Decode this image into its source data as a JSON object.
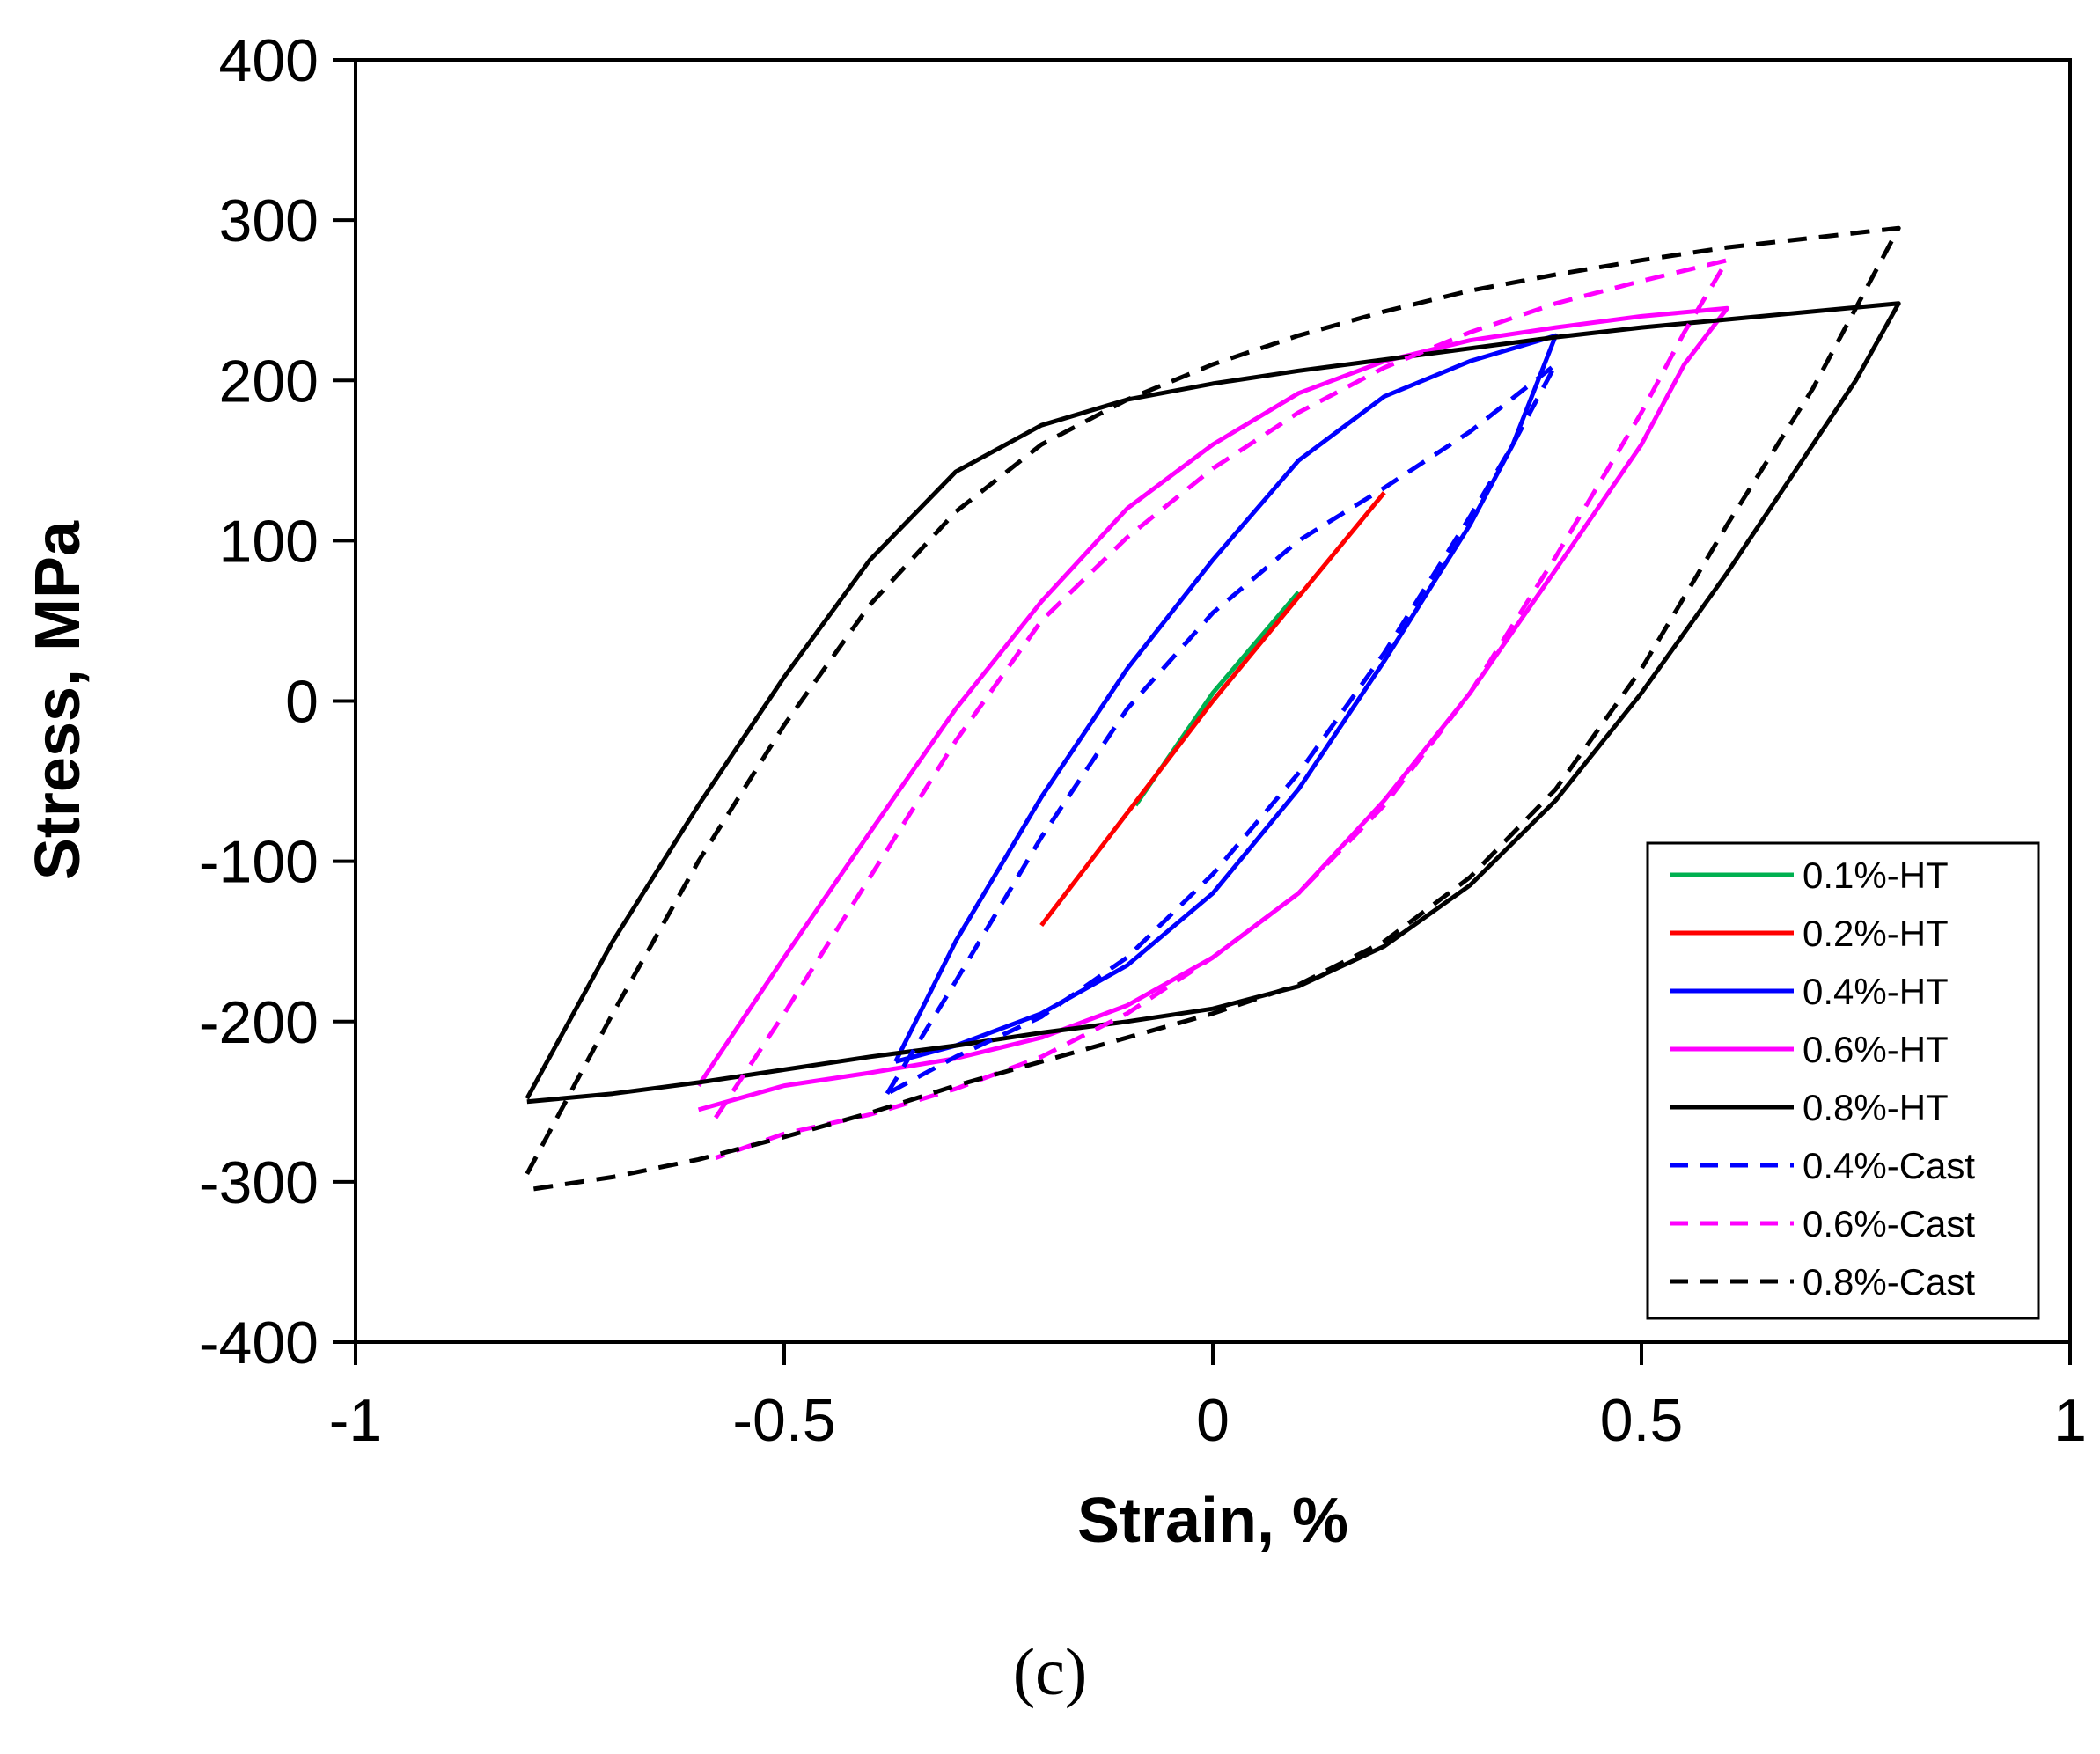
{
  "chart_data": {
    "type": "line",
    "title": "",
    "caption": "(c)",
    "xlabel": "Strain, %",
    "ylabel": "Stress, MPa",
    "xlim": [
      -1,
      1
    ],
    "ylim": [
      -400,
      400
    ],
    "xticks": [
      -1,
      -0.5,
      0,
      0.5,
      1
    ],
    "xtick_labels": [
      "-1",
      "-0.5",
      "0",
      "0.5",
      "1"
    ],
    "yticks": [
      -400,
      -300,
      -200,
      -100,
      0,
      100,
      200,
      300,
      400
    ],
    "ytick_labels": [
      "-400",
      "-300",
      "-200",
      "-100",
      "0",
      "100",
      "200",
      "300",
      "400"
    ],
    "grid": false,
    "legend_position": "bottom-right",
    "series": [
      {
        "name": "0.1%-HT",
        "color": "#00b050",
        "dash": "solid",
        "x": [
          -0.09,
          0.0,
          0.1
        ],
        "y": [
          -65,
          5,
          68
        ]
      },
      {
        "name": "0.2%-HT",
        "color": "#ff0000",
        "dash": "solid",
        "x": [
          -0.2,
          -0.1,
          0.0,
          0.1,
          0.2
        ],
        "y": [
          -140,
          -70,
          0,
          65,
          130
        ]
      },
      {
        "name": "0.4%-HT",
        "color": "#0000ff",
        "dash": "solid",
        "x": [
          -0.37,
          -0.3,
          -0.2,
          -0.1,
          0.0,
          0.1,
          0.2,
          0.3,
          0.4,
          0.35,
          0.3,
          0.2,
          0.1,
          0.0,
          -0.1,
          -0.2,
          -0.3,
          -0.37
        ],
        "y": [
          -225,
          -150,
          -60,
          20,
          88,
          150,
          190,
          212,
          228,
          160,
          110,
          25,
          -55,
          -120,
          -165,
          -195,
          -215,
          -225
        ]
      },
      {
        "name": "0.6%-HT",
        "color": "#ff00ff",
        "dash": "solid",
        "x": [
          -0.6,
          -0.5,
          -0.4,
          -0.3,
          -0.2,
          -0.1,
          0.0,
          0.1,
          0.2,
          0.3,
          0.4,
          0.5,
          0.6,
          0.55,
          0.5,
          0.4,
          0.3,
          0.2,
          0.1,
          0.0,
          -0.1,
          -0.2,
          -0.3,
          -0.4,
          -0.5,
          -0.6
        ],
        "y": [
          -240,
          -160,
          -82,
          -5,
          62,
          120,
          160,
          192,
          212,
          225,
          233,
          240,
          245,
          210,
          160,
          82,
          5,
          -62,
          -120,
          -160,
          -190,
          -210,
          -223,
          -232,
          -240,
          -255
        ]
      },
      {
        "name": "0.8%-HT",
        "color": "#000000",
        "dash": "solid",
        "x": [
          -0.8,
          -0.7,
          -0.6,
          -0.5,
          -0.4,
          -0.3,
          -0.2,
          -0.1,
          0.0,
          0.1,
          0.2,
          0.3,
          0.4,
          0.5,
          0.6,
          0.7,
          0.8,
          0.75,
          0.7,
          0.6,
          0.5,
          0.4,
          0.3,
          0.2,
          0.1,
          0.0,
          -0.1,
          -0.2,
          -0.3,
          -0.4,
          -0.5,
          -0.6,
          -0.7,
          -0.8
        ],
        "y": [
          -248,
          -150,
          -65,
          15,
          88,
          143,
          172,
          188,
          198,
          206,
          213,
          220,
          227,
          233,
          238,
          243,
          248,
          200,
          160,
          80,
          5,
          -62,
          -115,
          -153,
          -178,
          -192,
          -200,
          -207,
          -215,
          -222,
          -230,
          -238,
          -245,
          -250
        ]
      },
      {
        "name": "0.4%-Cast",
        "color": "#0000ff",
        "dash": "dashed",
        "x": [
          -0.38,
          -0.3,
          -0.2,
          -0.1,
          0.0,
          0.1,
          0.2,
          0.3,
          0.4,
          0.35,
          0.3,
          0.2,
          0.1,
          0.0,
          -0.1,
          -0.2,
          -0.3,
          -0.38
        ],
        "y": [
          -245,
          -175,
          -85,
          -5,
          55,
          100,
          133,
          168,
          210,
          160,
          115,
          30,
          -45,
          -108,
          -160,
          -197,
          -222,
          -245
        ]
      },
      {
        "name": "0.6%-Cast",
        "color": "#ff00ff",
        "dash": "dashed",
        "x": [
          -0.58,
          -0.5,
          -0.4,
          -0.3,
          -0.2,
          -0.1,
          0.0,
          0.1,
          0.2,
          0.3,
          0.4,
          0.5,
          0.6,
          0.55,
          0.5,
          0.4,
          0.3,
          0.2,
          0.1,
          0.0,
          -0.1,
          -0.2,
          -0.3,
          -0.4,
          -0.5,
          -0.58
        ],
        "y": [
          -260,
          -195,
          -110,
          -25,
          50,
          102,
          145,
          180,
          208,
          230,
          248,
          262,
          275,
          230,
          180,
          90,
          5,
          -65,
          -120,
          -160,
          -195,
          -222,
          -242,
          -258,
          -270,
          -285
        ]
      },
      {
        "name": "0.8%-Cast",
        "color": "#000000",
        "dash": "dashed",
        "x": [
          -0.8,
          -0.7,
          -0.6,
          -0.5,
          -0.4,
          -0.3,
          -0.2,
          -0.1,
          0.0,
          0.1,
          0.2,
          0.3,
          0.4,
          0.5,
          0.6,
          0.7,
          0.8,
          0.75,
          0.7,
          0.6,
          0.5,
          0.4,
          0.3,
          0.2,
          0.1,
          0.0,
          -0.1,
          -0.2,
          -0.3,
          -0.4,
          -0.5,
          -0.6,
          -0.7,
          -0.8
        ],
        "y": [
          -295,
          -195,
          -100,
          -15,
          60,
          118,
          160,
          188,
          210,
          228,
          243,
          256,
          266,
          275,
          283,
          289,
          295,
          245,
          195,
          110,
          20,
          -55,
          -110,
          -150,
          -177,
          -195,
          -210,
          -225,
          -240,
          -257,
          -272,
          -286,
          -297,
          -305
        ]
      }
    ]
  }
}
